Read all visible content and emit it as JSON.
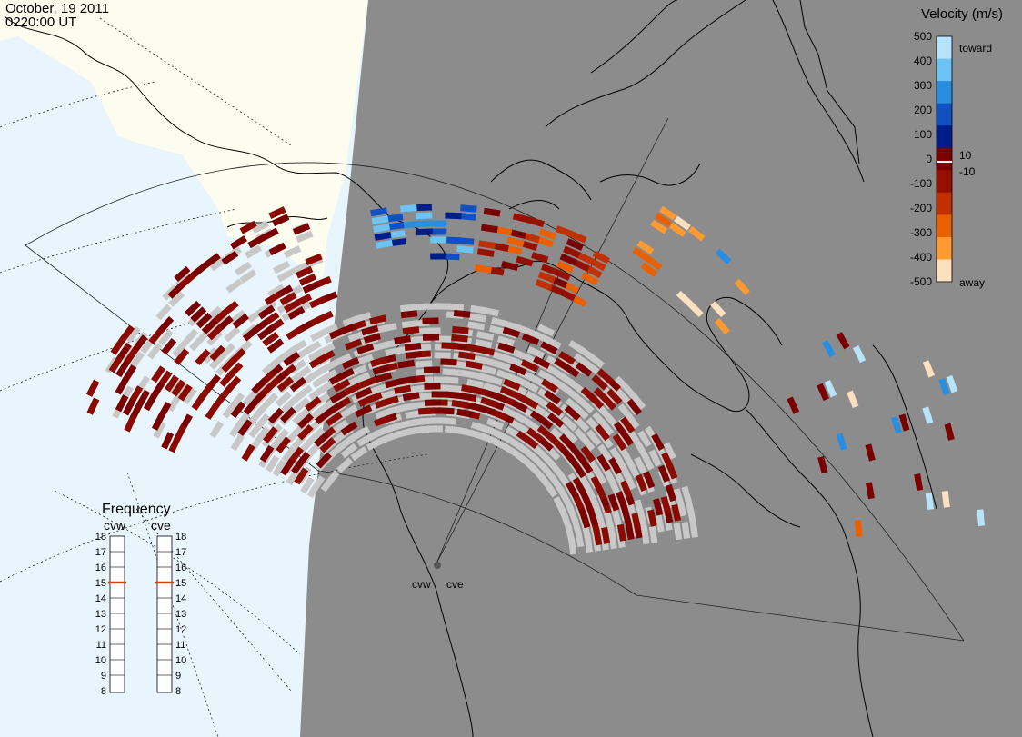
{
  "header": {
    "date": "October, 19 2011",
    "time": "0220:00 UT"
  },
  "radars": [
    {
      "code": "cvw"
    },
    {
      "code": "cve"
    }
  ],
  "colors": {
    "ocean": "#e9f5fc",
    "land_day": "#fcfcef",
    "night": "#8c8c8c",
    "ground_scatter": "#c8c8c8",
    "coast": "#000000",
    "freq_marker": "#d83a10"
  },
  "velocity_scale": {
    "title": "Velocity (m/s)",
    "toward_label": "toward",
    "away_label": "away",
    "ticks": [
      "500",
      "400",
      "300",
      "200",
      "100",
      "0",
      "-100",
      "-200",
      "-300",
      "-400",
      "-500"
    ],
    "inner_ticks": [
      "10",
      "-10"
    ],
    "colors": [
      "#b8e4fb",
      "#6cc3f4",
      "#2a8ee0",
      "#1050c0",
      "#001e8a",
      "#7a0000",
      "#961000",
      "#c03000",
      "#e86000",
      "#ff9a30",
      "#fde0c0"
    ]
  },
  "frequency": {
    "title": "Frequency",
    "labels_cvw": "cvw",
    "labels_cve": "cve",
    "ticks": [
      "18",
      "17",
      "16",
      "15",
      "14",
      "13",
      "12",
      "11",
      "10",
      "9",
      "8"
    ],
    "cvw_mhz": 15,
    "cve_mhz": 15
  }
}
